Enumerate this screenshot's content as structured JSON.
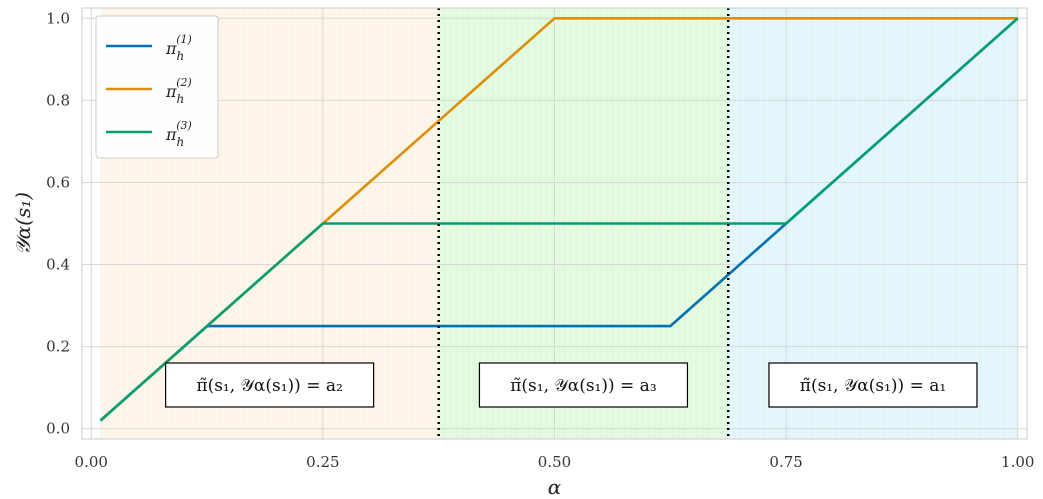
{
  "chart_data": {
    "type": "line",
    "xlabel": "α",
    "ylabel": "𝒴α(s₁)",
    "xlim": [
      -0.01,
      1.01
    ],
    "ylim": [
      -0.025,
      1.025
    ],
    "xticks": [
      0.0,
      0.25,
      0.5,
      0.75,
      1.0
    ],
    "xtick_labels": [
      "0.00",
      "0.25",
      "0.50",
      "0.75",
      "1.00"
    ],
    "yticks": [
      0.0,
      0.2,
      0.4,
      0.6,
      0.8,
      1.0
    ],
    "ytick_labels": [
      "0.0",
      "0.2",
      "0.4",
      "0.6",
      "0.8",
      "1.0"
    ],
    "grid": true,
    "legend_position": "top-left",
    "series": [
      {
        "name": "π_h^(1)",
        "label_base": "π",
        "label_sub": "h",
        "label_sup": "(1)",
        "color": "#0072b2",
        "x": [
          0.01,
          0.125,
          0.625,
          1.0
        ],
        "y": [
          0.02,
          0.25,
          0.25,
          1.0
        ]
      },
      {
        "name": "π_h^(2)",
        "label_base": "π",
        "label_sub": "h",
        "label_sup": "(2)",
        "color": "#de8f05",
        "x": [
          0.01,
          0.5,
          1.0
        ],
        "y": [
          0.02,
          1.0,
          1.0
        ]
      },
      {
        "name": "π_h^(3)",
        "label_base": "π",
        "label_sub": "h",
        "label_sup": "(3)",
        "color": "#029e73",
        "x": [
          0.01,
          0.25,
          0.75,
          1.0
        ],
        "y": [
          0.02,
          0.5,
          0.5,
          1.0
        ]
      }
    ],
    "thresholds": [
      0.375,
      0.6875
    ],
    "regions": [
      {
        "x0": 0.01,
        "x1": 0.375,
        "color": "#fdebd3",
        "label": "π̃(s₁, 𝒴α(s₁)) = a₂"
      },
      {
        "x0": 0.375,
        "x1": 0.6875,
        "color": "#c8f5c3",
        "label": "π̃(s₁, 𝒴α(s₁)) = a₃"
      },
      {
        "x0": 0.6875,
        "x1": 1.0,
        "color": "#c9ecf5",
        "label": "π̃(s₁, 𝒴α(s₁)) = a₁"
      }
    ]
  }
}
